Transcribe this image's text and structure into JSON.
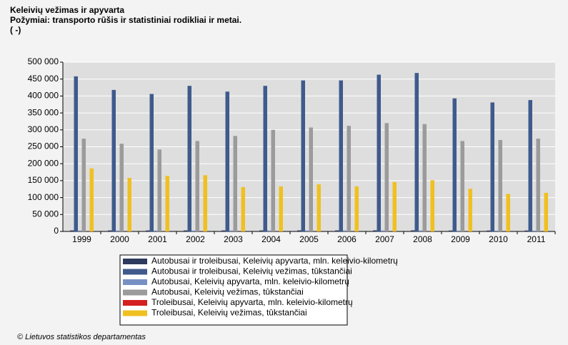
{
  "chart_data": {
    "type": "bar",
    "title": "Keleivių vežimas ir apyvarta",
    "subtitle": "Požymiai: transporto rūšis ir statistiniai rodikliai ir metai.",
    "y_label": "( -)",
    "categories": [
      "1999",
      "2000",
      "2001",
      "2002",
      "2003",
      "2004",
      "2005",
      "2006",
      "2007",
      "2008",
      "2009",
      "2010",
      "2011"
    ],
    "series": [
      {
        "name": "Autobusai ir troleibusai, Keleivių apyvarta, mln. keleivio-kilometrų",
        "color": "#2e3a5e",
        "values": [
          3000,
          2900,
          2800,
          2900,
          2900,
          2900,
          3000,
          3000,
          3100,
          3100,
          2700,
          2600,
          2600
        ]
      },
      {
        "name": "Autobusai ir troleibusai, Keleivių vežimas, tūkstančiai",
        "color": "#3f5a8c",
        "values": [
          458000,
          418000,
          406000,
          430000,
          413000,
          430000,
          446000,
          446000,
          463000,
          468000,
          393000,
          381000,
          388000
        ]
      },
      {
        "name": "Autobusai, Keleivių apyvarta, mln. keleivio-kilometrų",
        "color": "#7891c4",
        "values": [
          2700,
          2600,
          2500,
          2600,
          2600,
          2600,
          2700,
          2700,
          2800,
          2800,
          2400,
          2300,
          2300
        ]
      },
      {
        "name": "Autobusai, Keleivių vežimas, tūkstančiai",
        "color": "#9b9b9b",
        "values": [
          274000,
          259000,
          242000,
          267000,
          282000,
          300000,
          307000,
          312000,
          320000,
          317000,
          267000,
          270000,
          274000
        ]
      },
      {
        "name": "Troleibusai, Keleivių apyvarta, mln. keleivio-kilometrų",
        "color": "#d42020",
        "values": [
          350,
          320,
          310,
          300,
          300,
          300,
          300,
          300,
          300,
          300,
          280,
          270,
          270
        ]
      },
      {
        "name": "Troleibusai, Keleivių vežimas, tūkstančiai",
        "color": "#f0c020",
        "values": [
          186000,
          158000,
          164000,
          166000,
          131000,
          133000,
          139000,
          133000,
          146000,
          151000,
          126000,
          111000,
          114000
        ]
      }
    ],
    "ylim": [
      0,
      500000
    ],
    "yticks": [
      0,
      {
        "value": 50000,
        "label": "50 000"
      },
      {
        "value": 100000,
        "label": "100 000"
      },
      {
        "value": 150000,
        "label": "150 000"
      },
      {
        "value": 200000,
        "label": "200 000"
      },
      {
        "value": 250000,
        "label": "250 000"
      },
      {
        "value": 300000,
        "label": "300 000"
      },
      {
        "value": 350000,
        "label": "350 000"
      },
      {
        "value": 400000,
        "label": "400 000"
      },
      {
        "value": 450000,
        "label": "450 000"
      },
      {
        "value": 500000,
        "label": "500 000"
      }
    ],
    "grid": true,
    "source": "© Lietuvos statistikos departamentas"
  }
}
